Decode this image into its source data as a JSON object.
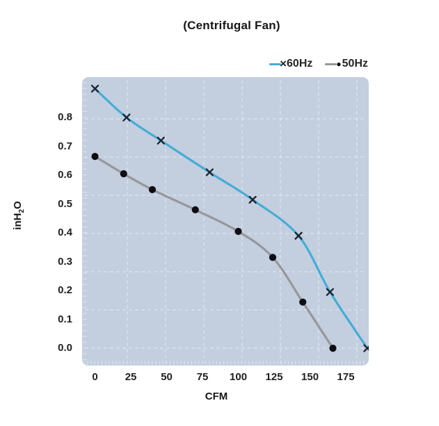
{
  "title": "(Centrifugal Fan)",
  "colors": {
    "page_bg": "#ffffff",
    "panel_bg": "#c3cedf",
    "grid_line": "#edf1f7",
    "minor_tick": "#e7ecf4",
    "text": "#1b1b1b",
    "series_60hz": "#45acd6",
    "series_50hz": "#97979a",
    "marker_60hz": "#1b2531",
    "marker_50hz": "#0d0d12"
  },
  "legend": {
    "items": [
      {
        "label": "60Hz",
        "glyph": "×",
        "line_color": "#45acd6",
        "marker_color": "#1b2531",
        "marker": "x"
      },
      {
        "label": "50Hz",
        "glyph": "●",
        "line_color": "#97979a",
        "marker_color": "#0d0d12",
        "marker": "circle"
      }
    ]
  },
  "axes": {
    "x": {
      "label": "CFM",
      "ticks": [
        "0",
        "25",
        "50",
        "75",
        "100",
        "125",
        "150",
        "175"
      ],
      "tick_values": [
        0,
        25,
        50,
        75,
        100,
        125,
        150,
        175
      ]
    },
    "y": {
      "label_pre": "inH",
      "label_sub": "2",
      "label_post": "O",
      "ticks": [
        "0.0",
        "0.1",
        "0.2",
        "0.3",
        "0.4",
        "0.5",
        "0.6",
        "0.7",
        "0.8"
      ],
      "tick_values": [
        0.0,
        0.1,
        0.2,
        0.3,
        0.4,
        0.5,
        0.6,
        0.7,
        0.8
      ]
    }
  },
  "chart_data": {
    "type": "line",
    "title": "(Centrifugal Fan)",
    "xlabel": "CFM",
    "ylabel": "inH2O",
    "xlim": [
      -9,
      191
    ],
    "ylim": [
      -0.06,
      0.94
    ],
    "x_ticks": [
      0,
      25,
      50,
      75,
      100,
      125,
      150,
      175
    ],
    "y_ticks": [
      0.0,
      0.1,
      0.2,
      0.3,
      0.4,
      0.5,
      0.6,
      0.7,
      0.8
    ],
    "grid": true,
    "legend_position": "top-right",
    "series": [
      {
        "name": "60Hz",
        "marker": "x",
        "color": "#45acd6",
        "x": [
          0,
          22,
          46,
          80,
          110,
          142,
          164,
          190
        ],
        "y": [
          0.9,
          0.8,
          0.72,
          0.61,
          0.515,
          0.39,
          0.195,
          0.0
        ]
      },
      {
        "name": "50Hz",
        "marker": "circle",
        "color": "#97979a",
        "x": [
          0,
          20,
          40,
          70,
          100,
          124,
          145,
          166
        ],
        "y": [
          0.665,
          0.605,
          0.55,
          0.48,
          0.405,
          0.315,
          0.16,
          0.0
        ]
      }
    ]
  }
}
